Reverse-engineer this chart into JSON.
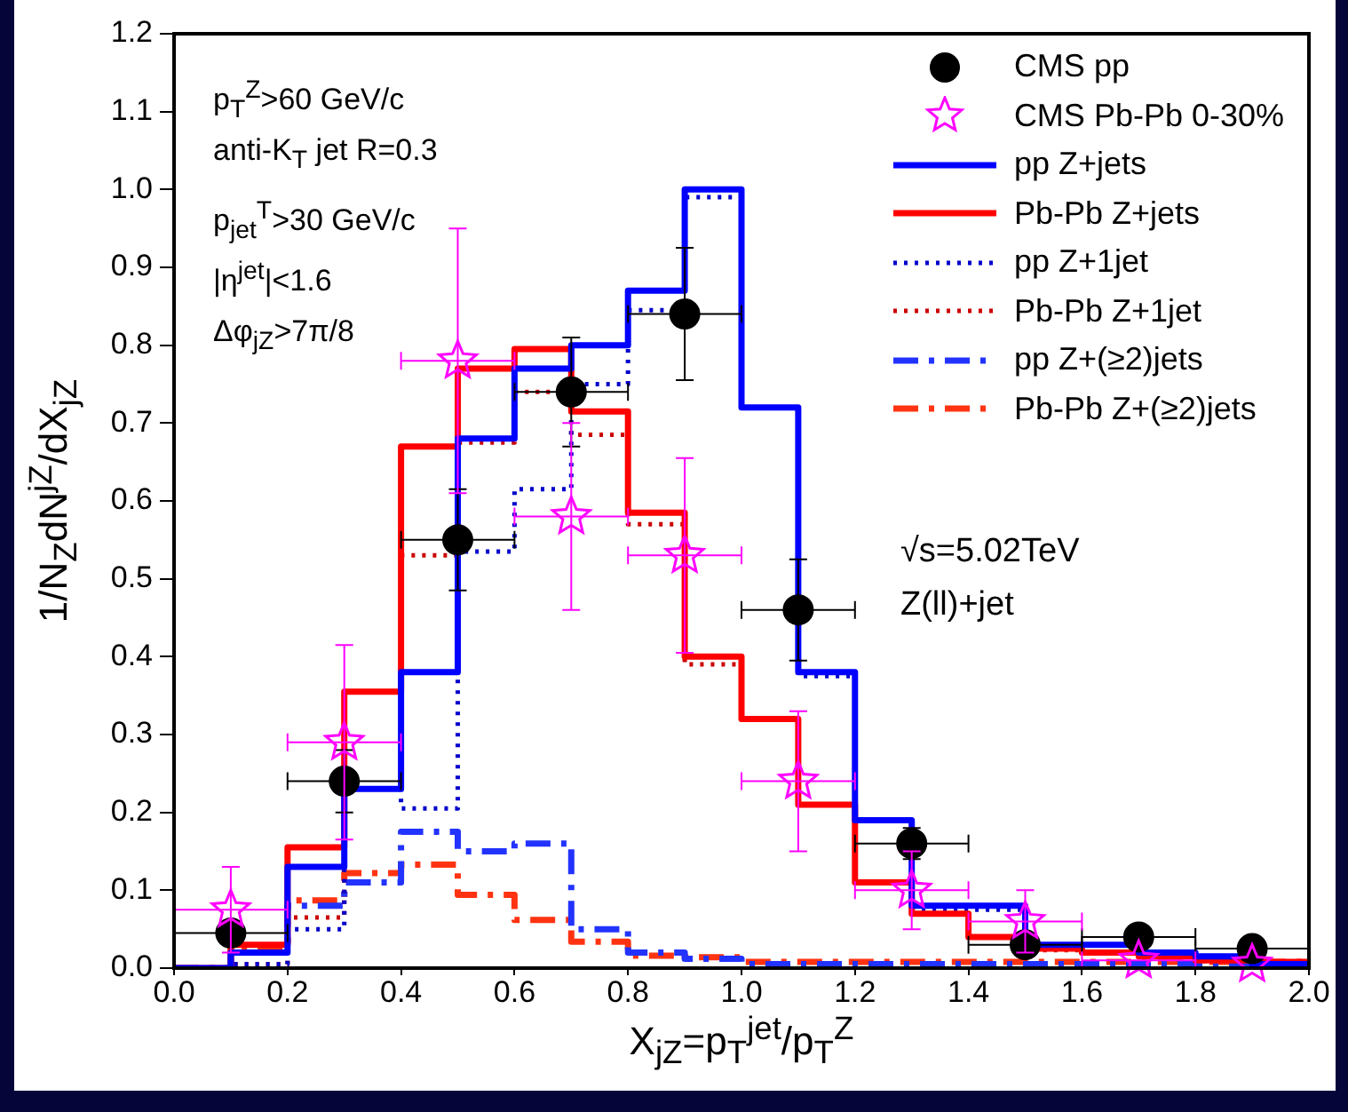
{
  "chart_data": {
    "type": "histogram",
    "xlabel": "X$_{jZ}$=p$_{T}$$^{jet}$/p$_{T}$$^{Z}$",
    "ylabel": "1/N$_{Z}$dN$^{jZ}$/dX$_{jZ}$",
    "xlim": [
      0,
      2
    ],
    "ylim": [
      0,
      1.2
    ],
    "xticks": [
      {
        "value": 0,
        "label": "0.0"
      },
      0.2,
      0.4,
      0.6,
      0.8,
      {
        "value": 1,
        "label": "1.0"
      },
      1.2,
      1.4,
      1.6,
      1.8,
      {
        "value": 2,
        "label": "2.0"
      }
    ],
    "yticks": [
      {
        "value": 0,
        "label": "0.0"
      },
      0.1,
      0.2,
      0.3,
      0.4,
      0.5,
      0.6,
      0.7,
      0.8,
      0.9,
      {
        "value": 1,
        "label": "1.0"
      },
      1.1,
      1.2
    ],
    "bins": [
      0,
      0.1,
      0.2,
      0.3,
      0.4,
      0.5,
      0.6,
      0.7,
      0.8,
      0.9,
      1,
      1.1,
      1.2,
      1.3,
      1.4,
      1.5,
      1.6,
      1.7,
      1.8,
      1.9,
      2
    ],
    "legend": "top right",
    "grid": false,
    "annotations": [
      "p$_{T}$$^{Z}$>60 GeV/c",
      "anti-K$_{T}$ jet   R=0.3",
      "p$_{jet}$$^{T}$>30 GeV/c",
      "|η$^{jet}$|<1.6",
      "Δφ$_{jZ}$>7π/8",
      "√s=5.02TeV",
      "Z(ll)+jet"
    ],
    "series": [
      {
        "name": "CMS pp",
        "type": "scatter",
        "marker": "circle",
        "color": "#000000",
        "x": [
          0.1,
          0.3,
          0.5,
          0.7,
          0.9,
          1.1,
          1.3,
          1.5,
          1.7,
          1.9
        ],
        "values": [
          0.045,
          0.24,
          0.55,
          0.74,
          0.84,
          0.46,
          0.16,
          0.03,
          0.04,
          0.025
        ],
        "errors": [
          null,
          0.04,
          0.065,
          0.07,
          0.085,
          0.065,
          0.02,
          null,
          null,
          null
        ],
        "xerrors": [
          0.1,
          0.1,
          0.1,
          0.1,
          0.1,
          0.1,
          0.1,
          0.1,
          0.1,
          0.1
        ]
      },
      {
        "name": "CMS Pb-Pb 0-30%",
        "type": "scatter",
        "marker": "star",
        "color": "#ff00ff",
        "x": [
          0.1,
          0.3,
          0.5,
          0.7,
          0.9,
          1.1,
          1.3,
          1.5,
          1.7,
          1.9
        ],
        "values": [
          0.075,
          0.29,
          0.78,
          0.58,
          0.53,
          0.24,
          0.1,
          0.06,
          0.01,
          0.005
        ],
        "errors": [
          0.055,
          0.125,
          0.17,
          0.12,
          0.125,
          0.09,
          0.05,
          0.04,
          null,
          null
        ],
        "xerrors": [
          0.1,
          0.1,
          0.1,
          0.1,
          0.1,
          0.1,
          0.1,
          0.1,
          0.1,
          null
        ]
      },
      {
        "name": "pp Z+jets",
        "color": "#0000ff",
        "line_style": "solid",
        "values": [
          0,
          0.02,
          0.13,
          0.23,
          0.38,
          0.68,
          0.77,
          0.8,
          0.87,
          1.0,
          0.72,
          0.38,
          0.19,
          0.08,
          0.08,
          0.03,
          0.03,
          0.02,
          0.015,
          0.005
        ]
      },
      {
        "name": "Pb-Pb Z+jets",
        "color": "#ff0000",
        "line_style": "solid",
        "values": [
          0,
          0.03,
          0.155,
          0.355,
          0.67,
          0.77,
          0.795,
          0.715,
          0.585,
          0.4,
          0.32,
          0.21,
          0.11,
          0.07,
          0.04,
          0.025,
          0.02,
          0.015,
          0.01,
          0.008
        ]
      },
      {
        "name": "pp Z+1jet",
        "color": "#0000cc",
        "line_style": "dotted",
        "values": [
          0,
          0.005,
          0.05,
          0.23,
          0.205,
          0.535,
          0.615,
          0.75,
          0.845,
          0.99,
          0.72,
          0.375,
          0.19,
          0.075,
          0.075,
          0.025,
          0.03,
          0.02,
          0.015,
          0.005
        ]
      },
      {
        "name": "Pb-Pb Z+1jet",
        "color": "#cc0000",
        "line_style": "dotted",
        "values": [
          0,
          0.005,
          0.065,
          0.23,
          0.53,
          0.675,
          0.74,
          0.685,
          0.57,
          0.39,
          0.32,
          0.21,
          0.11,
          0.07,
          0.04,
          0.023,
          0.019,
          0.015,
          0.009,
          0.007
        ]
      },
      {
        "name": "pp Z+(≥2)jets",
        "color": "#2233ff",
        "line_style": "dashed",
        "values": [
          0,
          0.02,
          0.08,
          0.11,
          0.175,
          0.15,
          0.16,
          0.05,
          0.02,
          0.012,
          0.005,
          0.005,
          0.005,
          0.005,
          0.005,
          0.005,
          0.005,
          0.005,
          0.005,
          0.005
        ]
      },
      {
        "name": "Pb-Pb Z+(≥2)jets",
        "color": "#ff3311",
        "line_style": "dashed",
        "values": [
          0,
          0.025,
          0.087,
          0.122,
          0.133,
          0.094,
          0.062,
          0.034,
          0.016,
          0.014,
          0.008,
          0.008,
          0.008,
          0.008,
          0.008,
          0.008,
          0.008,
          0.008,
          0.008,
          0.008
        ]
      }
    ]
  }
}
